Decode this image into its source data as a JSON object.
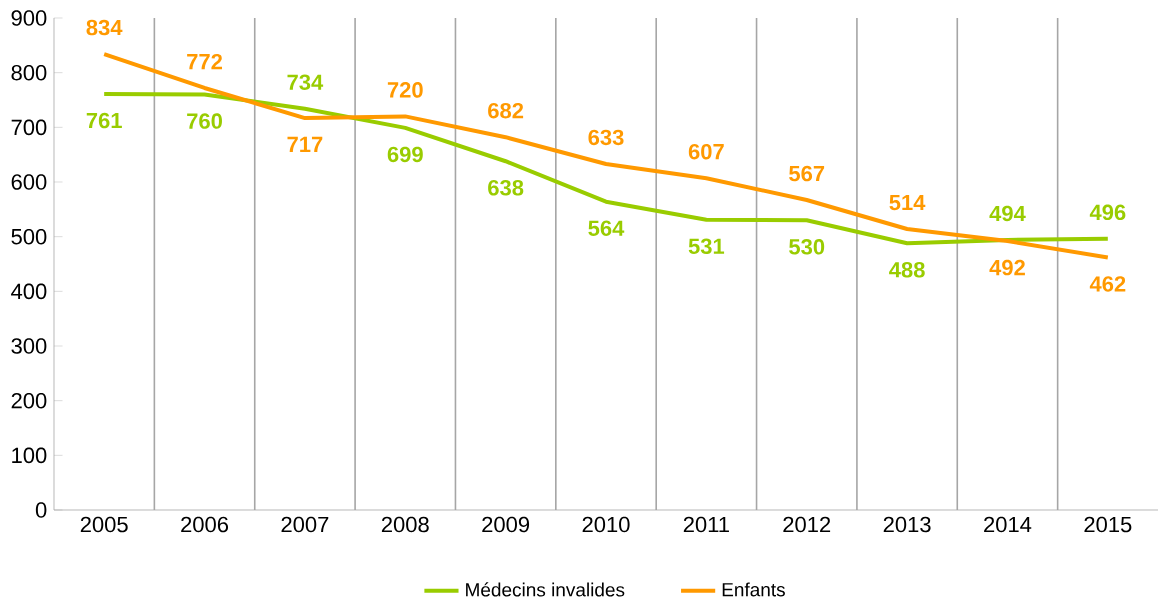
{
  "chart_data": {
    "type": "line",
    "categories": [
      "2005",
      "2006",
      "2007",
      "2008",
      "2009",
      "2010",
      "2011",
      "2012",
      "2013",
      "2014",
      "2015"
    ],
    "series": [
      {
        "name": "Médecins invalides",
        "color": "#99cc00",
        "values": [
          761,
          760,
          734,
          699,
          638,
          564,
          531,
          530,
          488,
          494,
          496
        ]
      },
      {
        "name": "Enfants",
        "color": "#ff9900",
        "values": [
          834,
          772,
          717,
          720,
          682,
          633,
          607,
          567,
          514,
          492,
          462
        ]
      }
    ],
    "ylim": [
      0,
      900
    ],
    "yticks": [
      0,
      100,
      200,
      300,
      400,
      500,
      600,
      700,
      800,
      900
    ],
    "grid": "x",
    "legend": "bottom",
    "data_labels": true,
    "marker": "none",
    "line_style": "solid"
  }
}
